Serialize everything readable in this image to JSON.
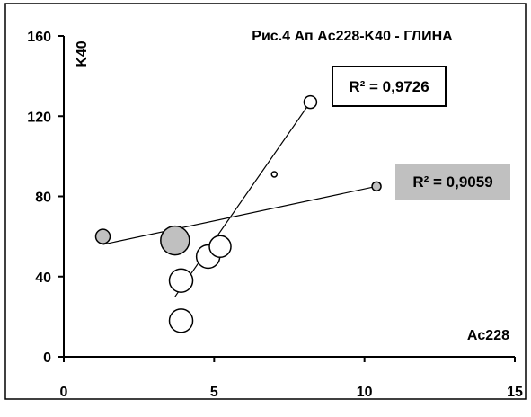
{
  "chart_data": {
    "type": "scatter",
    "title": "Рис.4 Ап  Ac228-K40 - ГЛИНА",
    "xlabel": "Ac228",
    "ylabel": "K40",
    "xlim": [
      0,
      15
    ],
    "ylim": [
      0,
      160
    ],
    "x_ticks": [
      "0",
      "5",
      "10",
      "15"
    ],
    "y_ticks": [
      "0",
      "40",
      "80",
      "120",
      "160"
    ],
    "grid": false,
    "series": [
      {
        "fill": "#c0c0c0",
        "points": [
          {
            "x": 1.3,
            "y": 60,
            "size": 8
          },
          {
            "x": 3.7,
            "y": 58,
            "size": 16
          },
          {
            "x": 10.4,
            "y": 85,
            "size": 5
          }
        ],
        "trend": {
          "x0": 1.3,
          "y0": 56,
          "x1": 10.4,
          "y1": 85
        },
        "r2_label": "R² = 0,9059",
        "label_style": "gray-box"
      },
      {
        "fill": "#ffffff",
        "points": [
          {
            "x": 3.9,
            "y": 18,
            "size": 13
          },
          {
            "x": 3.9,
            "y": 38,
            "size": 13
          },
          {
            "x": 4.8,
            "y": 50,
            "size": 13
          },
          {
            "x": 5.2,
            "y": 55,
            "size": 12
          },
          {
            "x": 7.0,
            "y": 91,
            "size": 3
          },
          {
            "x": 8.2,
            "y": 127,
            "size": 7
          }
        ],
        "trend": {
          "x0": 3.7,
          "y0": 30,
          "x1": 8.2,
          "y1": 127
        },
        "r2_label": "R² = 0,9726",
        "label_style": "white-box"
      }
    ]
  }
}
